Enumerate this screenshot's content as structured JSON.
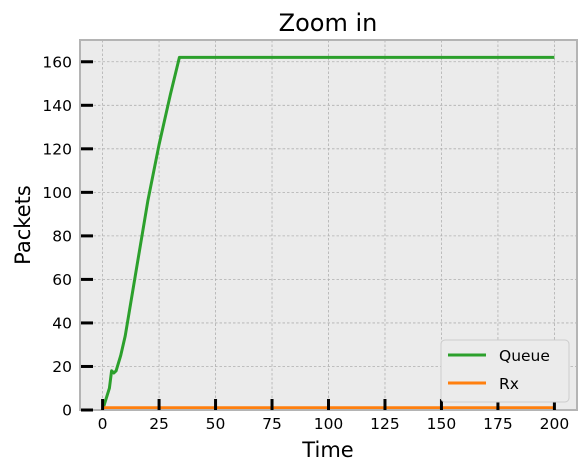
{
  "chart_data": {
    "type": "line",
    "title": "Zoom in",
    "xlabel": "Time",
    "ylabel": "Packets",
    "xlim": [
      -10,
      210
    ],
    "ylim": [
      0,
      170
    ],
    "xticks": [
      0,
      25,
      50,
      75,
      100,
      125,
      150,
      175,
      200
    ],
    "yticks": [
      0,
      20,
      40,
      60,
      80,
      100,
      120,
      140,
      160
    ],
    "grid": true,
    "legend_position": "lower-right",
    "series": [
      {
        "name": "Queue",
        "color": "#2ca02c",
        "x": [
          0,
          3,
          4,
          5,
          6,
          8,
          10,
          15,
          20,
          25,
          30,
          34,
          200
        ],
        "y": [
          0,
          10,
          18,
          17,
          18,
          25,
          34,
          65,
          96,
          122,
          145,
          162,
          162
        ]
      },
      {
        "name": "Rx",
        "color": "#ff7f0e",
        "x": [
          0,
          200
        ],
        "y": [
          1,
          1
        ]
      }
    ]
  }
}
